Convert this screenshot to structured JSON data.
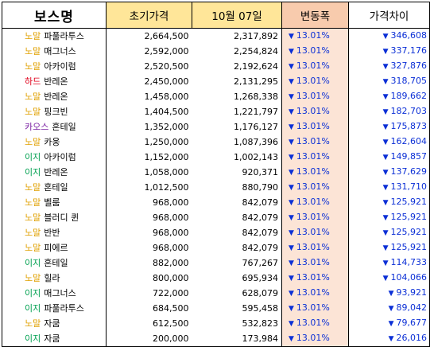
{
  "columns": {
    "name": "보스명",
    "initial": "초기가격",
    "current": "10월 07일",
    "change": "변동폭",
    "diff": "가격차이"
  },
  "difficulty_colors": {
    "노말": "#e0a000",
    "하드": "#e0001b",
    "카오스": "#7a1fa2",
    "이지": "#00a050"
  },
  "accent_blue": "#0b2fd6",
  "header_colors": {
    "yellow": "#ffe699",
    "orange": "#f8cbad"
  },
  "change_column_bg": "#fce4d6",
  "rows": [
    {
      "difficulty": "노말",
      "boss": "파풀라투스",
      "initial": "2,664,500",
      "current": "2,317,892",
      "change": "13.01%",
      "diff": "346,608"
    },
    {
      "difficulty": "노말",
      "boss": "매그너스",
      "initial": "2,592,000",
      "current": "2,254,824",
      "change": "13.01%",
      "diff": "337,176"
    },
    {
      "difficulty": "노말",
      "boss": "아카이럼",
      "initial": "2,520,500",
      "current": "2,192,624",
      "change": "13.01%",
      "diff": "327,876"
    },
    {
      "difficulty": "하드",
      "boss": "반레온",
      "initial": "2,450,000",
      "current": "2,131,295",
      "change": "13.01%",
      "diff": "318,705"
    },
    {
      "difficulty": "노말",
      "boss": "반레온",
      "initial": "1,458,000",
      "current": "1,268,338",
      "change": "13.01%",
      "diff": "189,662"
    },
    {
      "difficulty": "노말",
      "boss": "핑크빈",
      "initial": "1,404,500",
      "current": "1,221,797",
      "change": "13.01%",
      "diff": "182,703"
    },
    {
      "difficulty": "카오스",
      "boss": "혼테일",
      "initial": "1,352,000",
      "current": "1,176,127",
      "change": "13.01%",
      "diff": "175,873"
    },
    {
      "difficulty": "노말",
      "boss": "카웅",
      "initial": "1,250,000",
      "current": "1,087,396",
      "change": "13.01%",
      "diff": "162,604"
    },
    {
      "difficulty": "이지",
      "boss": "아카이럼",
      "initial": "1,152,000",
      "current": "1,002,143",
      "change": "13.01%",
      "diff": "149,857"
    },
    {
      "difficulty": "이지",
      "boss": "반레온",
      "initial": "1,058,000",
      "current": "920,371",
      "change": "13.01%",
      "diff": "137,629"
    },
    {
      "difficulty": "노말",
      "boss": "혼테일",
      "initial": "1,012,500",
      "current": "880,790",
      "change": "13.01%",
      "diff": "131,710"
    },
    {
      "difficulty": "노말",
      "boss": "벨룸",
      "initial": "968,000",
      "current": "842,079",
      "change": "13.01%",
      "diff": "125,921"
    },
    {
      "difficulty": "노말",
      "boss": "블러디 퀸",
      "initial": "968,000",
      "current": "842,079",
      "change": "13.01%",
      "diff": "125,921"
    },
    {
      "difficulty": "노말",
      "boss": "반반",
      "initial": "968,000",
      "current": "842,079",
      "change": "13.01%",
      "diff": "125,921"
    },
    {
      "difficulty": "노말",
      "boss": "피에르",
      "initial": "968,000",
      "current": "842,079",
      "change": "13.01%",
      "diff": "125,921"
    },
    {
      "difficulty": "이지",
      "boss": "혼테일",
      "initial": "882,000",
      "current": "767,267",
      "change": "13.01%",
      "diff": "114,733"
    },
    {
      "difficulty": "노말",
      "boss": "힐라",
      "initial": "800,000",
      "current": "695,934",
      "change": "13.01%",
      "diff": "104,066"
    },
    {
      "difficulty": "이지",
      "boss": "매그너스",
      "initial": "722,000",
      "current": "628,079",
      "change": "13.01%",
      "diff": "93,921"
    },
    {
      "difficulty": "이지",
      "boss": "파풀라투스",
      "initial": "684,500",
      "current": "595,458",
      "change": "13.01%",
      "diff": "89,042"
    },
    {
      "difficulty": "노말",
      "boss": "자쿰",
      "initial": "612,500",
      "current": "532,823",
      "change": "13.01%",
      "diff": "79,677"
    },
    {
      "difficulty": "이지",
      "boss": "자쿰",
      "initial": "200,000",
      "current": "173,984",
      "change": "13.01%",
      "diff": "26,016"
    }
  ]
}
